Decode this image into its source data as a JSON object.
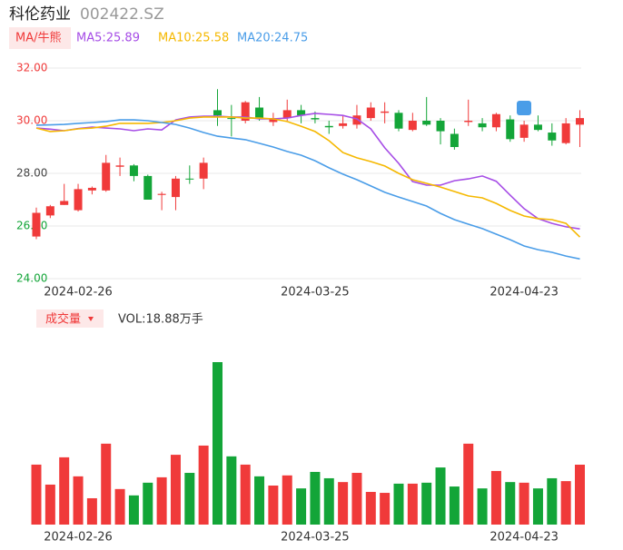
{
  "header": {
    "name": "科伦药业",
    "code": "002422.SZ",
    "ma_button": "MA/牛熊",
    "volume_button": "成交量",
    "volume_label": "VOL:18.88万手"
  },
  "chart_data": [
    {
      "type": "candlestick",
      "categories": [
        null,
        null,
        null,
        "2024-02-26",
        null,
        null,
        null,
        null,
        null,
        null,
        null,
        null,
        null,
        null,
        null,
        null,
        null,
        null,
        null,
        null,
        "2024-03-25",
        null,
        null,
        null,
        null,
        null,
        null,
        null,
        null,
        null,
        null,
        null,
        null,
        null,
        null,
        "2024-04-23",
        null,
        null,
        null,
        null
      ],
      "open": [
        25.6,
        26.4,
        26.8,
        26.6,
        27.35,
        27.35,
        28.25,
        28.3,
        27.9,
        27.18,
        27.1,
        27.8,
        27.8,
        30.4,
        30.1,
        30.0,
        30.5,
        29.95,
        30.1,
        30.4,
        30.1,
        29.8,
        29.8,
        29.85,
        30.1,
        30.3,
        30.3,
        29.65,
        30.0,
        30.0,
        29.5,
        29.95,
        29.9,
        29.75,
        30.05,
        29.35,
        29.85,
        29.55,
        29.15,
        29.85
      ],
      "close": [
        26.5,
        26.75,
        26.95,
        27.4,
        27.45,
        28.4,
        28.3,
        27.9,
        27.0,
        27.22,
        27.8,
        27.78,
        28.4,
        30.2,
        30.08,
        30.7,
        30.1,
        30.1,
        30.4,
        30.2,
        30.05,
        29.75,
        29.9,
        30.2,
        30.5,
        30.35,
        29.7,
        30.0,
        29.85,
        29.6,
        29.0,
        30.0,
        29.75,
        30.25,
        29.3,
        29.85,
        29.65,
        29.25,
        29.9,
        30.1
      ],
      "high": [
        26.7,
        26.8,
        27.6,
        27.6,
        27.5,
        28.7,
        28.6,
        28.35,
        27.95,
        27.3,
        27.9,
        28.3,
        28.6,
        31.2,
        30.6,
        30.75,
        30.9,
        30.3,
        30.8,
        30.6,
        30.35,
        30.0,
        30.2,
        30.6,
        30.7,
        30.7,
        30.4,
        30.3,
        30.9,
        30.1,
        29.7,
        30.8,
        30.1,
        30.3,
        30.2,
        30.0,
        30.2,
        29.9,
        30.1,
        30.4
      ],
      "low": [
        25.5,
        26.3,
        26.8,
        26.55,
        27.2,
        27.3,
        27.9,
        27.7,
        27.0,
        26.6,
        26.6,
        27.6,
        27.4,
        29.8,
        29.4,
        29.9,
        30.0,
        29.8,
        30.0,
        29.9,
        29.9,
        29.5,
        29.7,
        29.7,
        30.0,
        29.9,
        29.6,
        29.6,
        29.8,
        29.1,
        28.9,
        29.8,
        29.6,
        29.6,
        29.2,
        29.2,
        29.6,
        29.05,
        29.1,
        29.0
      ],
      "up_color": "#f03a3a",
      "down_color": "#13a538",
      "series": [
        {
          "name": "MA5",
          "label": "MA5:25.89",
          "color": "#a64de6",
          "values": [
            29.72,
            29.68,
            29.62,
            29.7,
            29.76,
            29.72,
            29.69,
            29.62,
            29.69,
            29.65,
            30.03,
            30.14,
            30.17,
            30.17,
            30.14,
            30.14,
            30.07,
            30.07,
            30.1,
            30.2,
            30.28,
            30.24,
            30.2,
            30.07,
            29.69,
            28.97,
            28.38,
            27.69,
            27.55,
            27.55,
            27.72,
            27.79,
            27.9,
            27.7,
            27.17,
            26.66,
            26.28,
            26.1,
            25.97,
            25.89
          ]
        },
        {
          "name": "MA10",
          "label": "MA10:25.58",
          "color": "#f5b800",
          "values": [
            29.72,
            29.59,
            29.62,
            29.69,
            29.72,
            29.79,
            29.9,
            29.9,
            29.9,
            29.93,
            30.0,
            30.1,
            30.14,
            30.14,
            30.14,
            30.1,
            30.1,
            30.07,
            29.97,
            29.79,
            29.59,
            29.24,
            28.79,
            28.59,
            28.45,
            28.28,
            28.0,
            27.76,
            27.62,
            27.48,
            27.31,
            27.14,
            27.07,
            26.86,
            26.59,
            26.38,
            26.28,
            26.24,
            26.1,
            25.58
          ]
        },
        {
          "name": "MA20",
          "label": "MA20:24.75",
          "color": "#4a9de8",
          "values": [
            29.83,
            29.84,
            29.86,
            29.9,
            29.93,
            29.97,
            30.03,
            30.03,
            30.0,
            29.93,
            29.86,
            29.72,
            29.55,
            29.41,
            29.34,
            29.28,
            29.14,
            29.0,
            28.83,
            28.69,
            28.48,
            28.21,
            27.97,
            27.76,
            27.52,
            27.28,
            27.1,
            26.93,
            26.76,
            26.48,
            26.24,
            26.07,
            25.9,
            25.69,
            25.48,
            25.24,
            25.1,
            25.0,
            24.86,
            24.75
          ]
        }
      ],
      "ylim": [
        24,
        32
      ],
      "yticks": [
        {
          "value": 24,
          "label": "24.00"
        },
        {
          "value": 26,
          "label": "26.00"
        },
        {
          "value": 28,
          "label": "28.00"
        },
        {
          "value": 30,
          "label": "30.00"
        },
        {
          "value": 32,
          "label": "32.00"
        }
      ],
      "ytick_colors": [
        "#13a538",
        "#13a538",
        "#444444",
        "#f03a3a",
        "#f03a3a"
      ],
      "grid": true
    },
    {
      "type": "bar",
      "categories": [
        null,
        null,
        null,
        "2024-02-26",
        null,
        null,
        null,
        null,
        null,
        null,
        null,
        null,
        null,
        null,
        null,
        null,
        null,
        null,
        null,
        null,
        "2024-03-25",
        null,
        null,
        null,
        null,
        null,
        null,
        null,
        null,
        null,
        null,
        null,
        null,
        null,
        null,
        "2024-04-23",
        null,
        null,
        null,
        null
      ],
      "values": [
        18.9,
        12.6,
        21.2,
        15.2,
        8.3,
        25.5,
        11.2,
        9.2,
        13.2,
        14.9,
        22.0,
        16.3,
        24.9,
        51.2,
        21.5,
        18.9,
        15.2,
        12.3,
        15.5,
        11.4,
        16.6,
        14.6,
        13.4,
        16.3,
        10.3,
        10.0,
        12.9,
        12.9,
        13.2,
        18.0,
        12.0,
        25.5,
        11.4,
        16.9,
        13.4,
        13.2,
        11.4,
        14.6,
        13.7,
        18.88
      ]
    }
  ]
}
